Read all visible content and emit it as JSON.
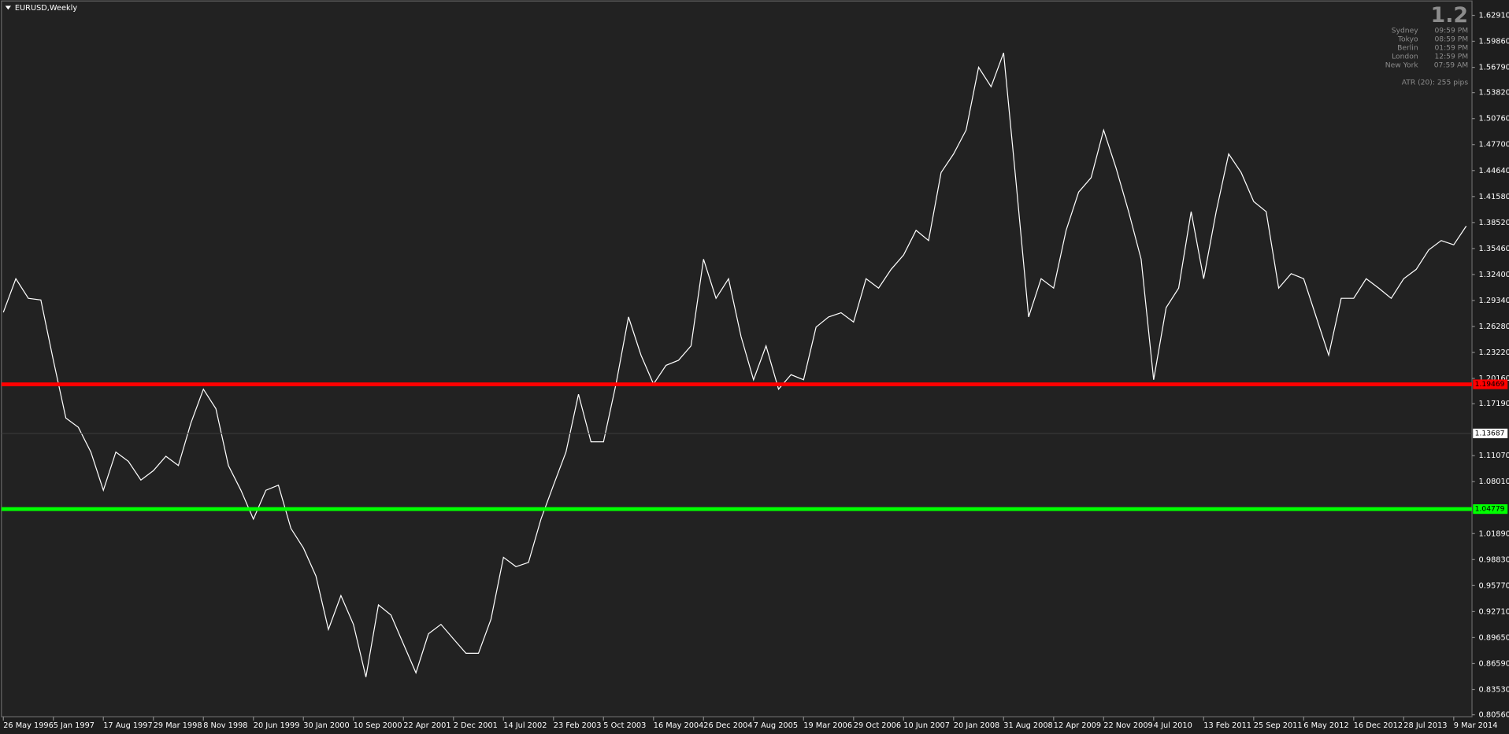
{
  "chart_data": {
    "type": "line",
    "title": "EURUSD,Weekly",
    "color": "#ffffff",
    "background": "#222222",
    "categories": [
      "26 May 1996",
      null,
      null,
      null,
      "5 Jan 1997",
      null,
      null,
      null,
      "17 Aug 1997",
      null,
      null,
      null,
      "29 Mar 1998",
      null,
      null,
      null,
      "8 Nov 1998",
      null,
      null,
      null,
      "20 Jun 1999",
      null,
      null,
      null,
      "30 Jan 2000",
      null,
      null,
      null,
      "10 Sep 2000",
      null,
      null,
      null,
      "22 Apr 2001",
      null,
      null,
      null,
      "2 Dec 2001",
      null,
      null,
      null,
      "14 Jul 2002",
      null,
      null,
      null,
      "23 Feb 2003",
      null,
      null,
      null,
      "5 Oct 2003",
      null,
      null,
      null,
      "16 May 2004",
      null,
      null,
      null,
      "26 Dec 2004",
      null,
      null,
      null,
      "7 Aug 2005",
      null,
      null,
      null,
      "19 Mar 2006",
      null,
      null,
      null,
      "29 Oct 2006",
      null,
      null,
      null,
      "10 Jun 2007",
      null,
      null,
      null,
      "20 Jan 2008",
      null,
      null,
      null,
      "31 Aug 2008",
      null,
      null,
      null,
      "12 Apr 2009",
      null,
      null,
      null,
      "22 Nov 2009",
      null,
      null,
      null,
      "4 Jul 2010",
      null,
      null,
      null,
      "13 Feb 2011",
      null,
      null,
      null,
      "25 Sep 2011",
      null,
      null,
      null,
      "6 May 2012",
      null,
      null,
      null,
      "16 Dec 2012",
      null,
      null,
      null,
      "28 Jul 2013",
      null,
      null,
      null,
      "9 Mar 2014",
      null
    ],
    "values": [
      1.2795,
      1.319,
      1.296,
      1.294,
      1.223,
      1.155,
      1.144,
      1.115,
      1.07,
      1.115,
      1.104,
      1.082,
      1.093,
      1.11,
      1.099,
      1.149,
      1.189,
      1.166,
      1.099,
      1.07,
      1.036,
      1.07,
      1.076,
      1.025,
      1.002,
      0.969,
      0.906,
      0.946,
      0.912,
      0.85,
      0.935,
      0.923,
      0.889,
      0.855,
      0.901,
      0.912,
      0.895,
      0.878,
      0.878,
      0.918,
      0.991,
      0.98,
      0.985,
      1.036,
      1.076,
      1.115,
      1.183,
      1.127,
      1.127,
      1.195,
      1.274,
      1.229,
      1.195,
      1.217,
      1.223,
      1.24,
      1.342,
      1.296,
      1.319,
      1.251,
      1.2,
      1.24,
      1.189,
      1.206,
      1.2,
      1.262,
      1.274,
      1.279,
      1.268,
      1.319,
      1.308,
      1.33,
      1.347,
      1.376,
      1.364,
      1.444,
      1.466,
      1.494,
      1.568,
      1.545,
      1.585,
      1.432,
      1.274,
      1.319,
      1.308,
      1.376,
      1.421,
      1.438,
      1.494,
      1.449,
      1.398,
      1.342,
      1.2,
      1.285,
      1.308,
      1.398,
      1.319,
      1.398,
      1.466,
      1.444,
      1.41,
      1.398,
      1.308,
      1.325,
      1.319,
      1.274,
      1.229,
      1.296,
      1.296,
      1.319,
      1.308,
      1.296,
      1.319,
      1.33,
      1.353,
      1.364,
      1.359,
      1.381
    ],
    "ylim": [
      0.8056,
      1.6291
    ],
    "yticks": [
      {
        "value": 1.6291,
        "label": "1.62910"
      },
      {
        "value": 1.5986,
        "label": "1.59860"
      },
      {
        "value": 1.5679,
        "label": "1.56790"
      },
      {
        "value": 1.5382,
        "label": "1.53820"
      },
      {
        "value": 1.5076,
        "label": "1.50760"
      },
      {
        "value": 1.477,
        "label": "1.47700"
      },
      {
        "value": 1.4464,
        "label": "1.44640"
      },
      {
        "value": 1.4158,
        "label": "1.41580"
      },
      {
        "value": 1.3852,
        "label": "1.38520"
      },
      {
        "value": 1.3546,
        "label": "1.35460"
      },
      {
        "value": 1.324,
        "label": "1.32400"
      },
      {
        "value": 1.2934,
        "label": "1.29340"
      },
      {
        "value": 1.2628,
        "label": "1.26280"
      },
      {
        "value": 1.2322,
        "label": "1.23220"
      },
      {
        "value": 1.2016,
        "label": "1.20160"
      },
      {
        "value": 1.1719,
        "label": "1.17190"
      },
      {
        "value": 1.1107,
        "label": "1.11070"
      },
      {
        "value": 1.0801,
        "label": "1.08010"
      },
      {
        "value": 1.0189,
        "label": "1.01890"
      },
      {
        "value": 0.9883,
        "label": "0.98830"
      },
      {
        "value": 0.9577,
        "label": "0.95770"
      },
      {
        "value": 0.9271,
        "label": "0.92710"
      },
      {
        "value": 0.8965,
        "label": "0.89650"
      },
      {
        "value": 0.8659,
        "label": "0.86590"
      },
      {
        "value": 0.8353,
        "label": "0.83530"
      },
      {
        "value": 0.8056,
        "label": "0.80560"
      }
    ],
    "hlines": [
      {
        "value": 1.19469,
        "color": "#ff0000",
        "width": 4
      },
      {
        "value": 1.13687,
        "color": "#3a3a3a",
        "width": 1
      },
      {
        "value": 1.04779,
        "color": "#00ff00",
        "width": 4
      }
    ],
    "info": {
      "clock": "1.2",
      "sessions": [
        {
          "city": "Sydney",
          "time": "09:59 PM"
        },
        {
          "city": "Tokyo",
          "time": "08:59 PM"
        },
        {
          "city": "Berlin",
          "time": "01:59 PM"
        },
        {
          "city": "London",
          "time": "12:59 PM"
        },
        {
          "city": "New York",
          "time": "07:59 AM"
        }
      ],
      "atr": "ATR (20): 255 pips"
    }
  }
}
